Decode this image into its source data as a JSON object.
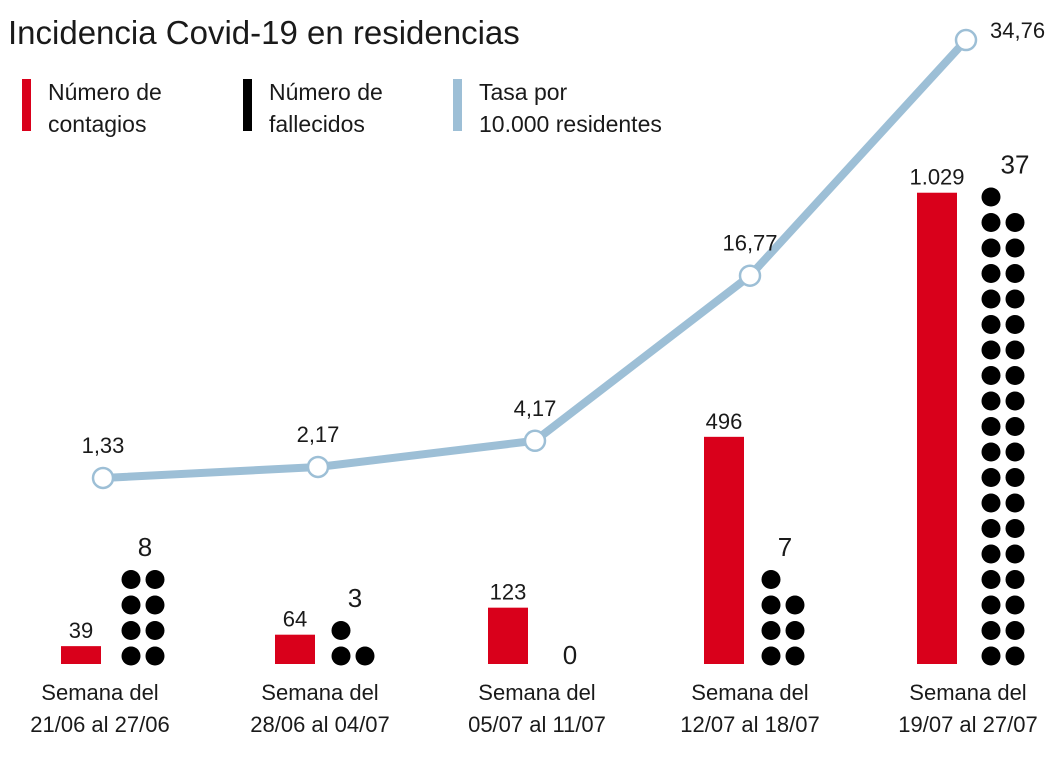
{
  "chart_data": {
    "type": "bar",
    "title": "Incidencia Covid-19 en residencias",
    "legend": [
      {
        "label_line1": "Número de",
        "label_line2": "contagios",
        "color": "#d9001b"
      },
      {
        "label_line1": "Número de",
        "label_line2": "fallecidos",
        "color": "#000000"
      },
      {
        "label_line1": "Tasa por",
        "label_line2": "10.000 residentes",
        "color": "#9dbfd6"
      }
    ],
    "categories": [
      {
        "line1": "Semana del",
        "line2": "21/06 al 27/06"
      },
      {
        "line1": "Semana del",
        "line2": "28/06 al 04/07"
      },
      {
        "line1": "Semana del",
        "line2": "05/07 al 11/07"
      },
      {
        "line1": "Semana del",
        "line2": "12/07 al 18/07"
      },
      {
        "line1": "Semana del",
        "line2": "19/07 al 27/07"
      }
    ],
    "series": [
      {
        "name": "Número de contagios",
        "type": "bar",
        "values": [
          39,
          64,
          123,
          496,
          1029
        ],
        "labels": [
          "39",
          "64",
          "123",
          "496",
          "1.029"
        ],
        "color": "#d9001b"
      },
      {
        "name": "Número de fallecidos",
        "type": "dots",
        "values": [
          8,
          3,
          0,
          7,
          37
        ],
        "labels": [
          "8",
          "3",
          "0",
          "7",
          "37"
        ],
        "color": "#000000"
      },
      {
        "name": "Tasa por 10.000 residentes",
        "type": "line",
        "values": [
          1.33,
          2.17,
          4.17,
          16.77,
          34.76
        ],
        "labels": [
          "1,33",
          "2,17",
          "4,17",
          "16,77",
          "34,76"
        ],
        "color": "#9dbfd6"
      }
    ],
    "grid": false,
    "legend_placement": "top-left"
  }
}
